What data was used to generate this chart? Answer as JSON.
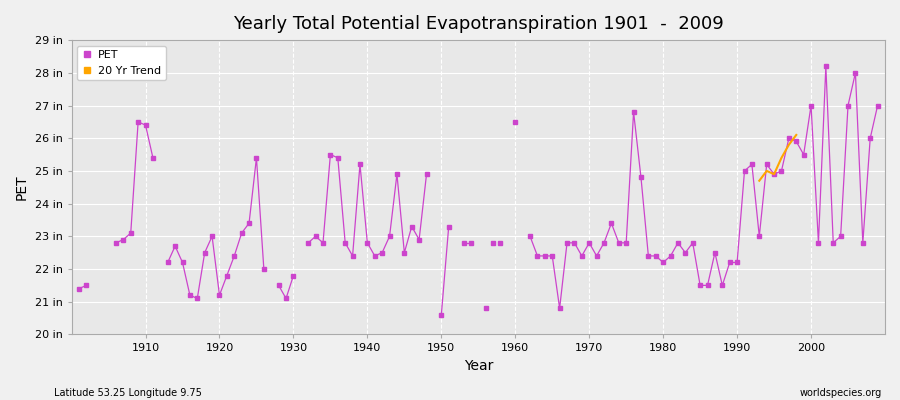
{
  "title": "Yearly Total Potential Evapotranspiration 1901  -  2009",
  "xlabel": "Year",
  "ylabel": "PET",
  "footnote_left": "Latitude 53.25 Longitude 9.75",
  "footnote_right": "worldspecies.org",
  "pet_color": "#CC44CC",
  "trend_color": "#FFA500",
  "background_color": "#E8E8E8",
  "ylim_min": 20,
  "ylim_max": 29,
  "xlim_min": 1900,
  "xlim_max": 2010,
  "years": [
    1901,
    1902,
    1906,
    1907,
    1908,
    1909,
    1910,
    1911,
    1913,
    1914,
    1915,
    1916,
    1917,
    1918,
    1919,
    1920,
    1921,
    1922,
    1923,
    1924,
    1925,
    1926,
    1928,
    1929,
    1930,
    1932,
    1933,
    1934,
    1935,
    1936,
    1937,
    1938,
    1939,
    1940,
    1941,
    1942,
    1943,
    1944,
    1945,
    1946,
    1947,
    1948,
    1950,
    1951,
    1953,
    1954,
    1956,
    1957,
    1958,
    1960,
    1962,
    1963,
    1964,
    1965,
    1966,
    1967,
    1968,
    1969,
    1970,
    1971,
    1972,
    1973,
    1974,
    1975,
    1976,
    1977,
    1978,
    1979,
    1980,
    1981,
    1982,
    1983,
    1984,
    1985,
    1986,
    1987,
    1988,
    1989,
    1990,
    1991,
    1992,
    1993,
    1994,
    1995,
    1996,
    1997,
    1998,
    1999,
    2000,
    2001,
    2002,
    2003,
    2004,
    2005,
    2006,
    2007,
    2008,
    2009
  ],
  "pet_values": [
    21.4,
    21.5,
    22.8,
    22.9,
    23.1,
    26.5,
    26.4,
    25.4,
    22.2,
    22.7,
    22.2,
    21.2,
    21.1,
    22.5,
    23.0,
    21.2,
    21.8,
    22.4,
    23.1,
    23.4,
    25.4,
    22.0,
    21.5,
    21.1,
    21.8,
    22.8,
    23.0,
    22.8,
    25.5,
    25.4,
    22.8,
    22.4,
    25.2,
    22.8,
    22.4,
    22.5,
    23.0,
    24.9,
    22.5,
    23.3,
    22.9,
    24.9,
    20.6,
    23.3,
    22.8,
    22.8,
    20.8,
    22.8,
    22.8,
    26.5,
    23.0,
    22.4,
    22.4,
    22.4,
    20.8,
    22.8,
    22.8,
    22.4,
    22.8,
    22.4,
    22.8,
    23.4,
    22.8,
    22.8,
    26.8,
    24.8,
    22.4,
    22.4,
    22.2,
    22.4,
    22.8,
    22.5,
    22.8,
    21.5,
    21.5,
    22.5,
    21.5,
    22.2,
    22.2,
    25.0,
    25.2,
    23.0,
    25.2,
    24.9,
    25.0,
    26.0,
    25.9,
    25.5,
    27.0,
    22.8,
    28.2,
    22.8,
    23.0,
    27.0,
    28.0,
    22.8,
    26.0,
    27.0
  ],
  "trend_years": [
    1993,
    1994,
    1995,
    1996,
    1997,
    1998
  ],
  "trend_values": [
    24.7,
    25.0,
    24.9,
    25.4,
    25.8,
    26.1
  ],
  "connected_segments": [
    [
      1901,
      1902
    ],
    [
      1906,
      1907,
      1908,
      1909,
      1910,
      1911
    ],
    [
      1913,
      1914,
      1915,
      1916,
      1917,
      1918,
      1919,
      1920,
      1921,
      1922,
      1923,
      1924,
      1925,
      1926
    ],
    [
      1928,
      1929,
      1930
    ],
    [
      1932,
      1933,
      1934,
      1935,
      1936,
      1937,
      1938,
      1939,
      1940,
      1941,
      1942,
      1943,
      1944,
      1945,
      1946,
      1947,
      1948
    ],
    [
      1950,
      1951
    ],
    [
      1953,
      1954
    ],
    [
      1962,
      1963,
      1964,
      1965,
      1966,
      1967,
      1968,
      1969,
      1970,
      1971,
      1972,
      1973,
      1974,
      1975,
      1976,
      1977,
      1978,
      1979,
      1980,
      1981,
      1982,
      1983,
      1984,
      1985,
      1986,
      1987,
      1988,
      1989,
      1990,
      1991,
      1992,
      1993,
      1994,
      1995,
      1996,
      1997,
      1998,
      1999,
      2000,
      2001,
      2002,
      2003,
      2004,
      2005,
      2006,
      2007,
      2008,
      2009
    ]
  ]
}
